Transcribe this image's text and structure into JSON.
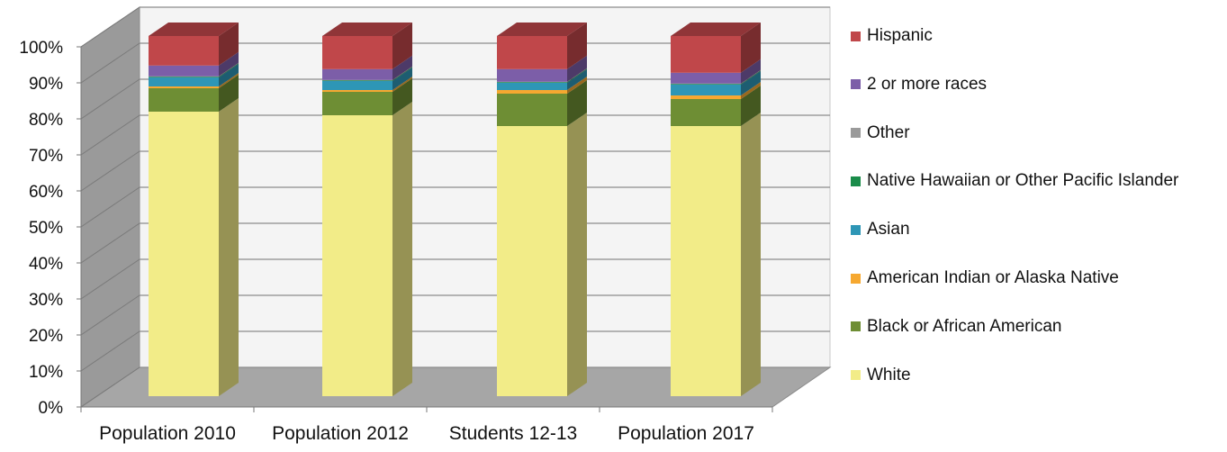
{
  "chart_data": {
    "type": "bar",
    "stacked": true,
    "three_d": true,
    "categories": [
      "Population 2010",
      "Population 2012",
      "Students 12-13",
      "Population 2017"
    ],
    "ylim": [
      0,
      100
    ],
    "yticks": [
      "0%",
      "10%",
      "20%",
      "30%",
      "40%",
      "50%",
      "60%",
      "70%",
      "80%",
      "90%",
      "100%"
    ],
    "grid": true,
    "legend_position": "right",
    "series": [
      {
        "name": "White",
        "color": "#f2ec88",
        "values": [
          79,
          78,
          75,
          75
        ]
      },
      {
        "name": "Black or African American",
        "color": "#6e8e34",
        "values": [
          6.5,
          6.5,
          9,
          7.5
        ]
      },
      {
        "name": "American Indian or Alaska Native",
        "color": "#f6a830",
        "values": [
          0.5,
          0.5,
          1,
          1
        ]
      },
      {
        "name": "Asian",
        "color": "#2e96b6",
        "values": [
          2.5,
          2.5,
          2,
          3
        ]
      },
      {
        "name": "Native Hawaiian or Other Pacific Islander",
        "color": "#1a8c4a",
        "values": [
          0.2,
          0.2,
          0.2,
          0.2
        ]
      },
      {
        "name": "Other",
        "color": "#9a9a9a",
        "values": [
          0.1,
          0.1,
          0.1,
          0.1
        ]
      },
      {
        "name": "2 or more races",
        "color": "#7c5ea8",
        "values": [
          3,
          3,
          3.5,
          3
        ]
      },
      {
        "name": "Hispanic",
        "color": "#c0474a",
        "values": [
          8.2,
          9.2,
          9.2,
          10.2
        ]
      }
    ]
  }
}
